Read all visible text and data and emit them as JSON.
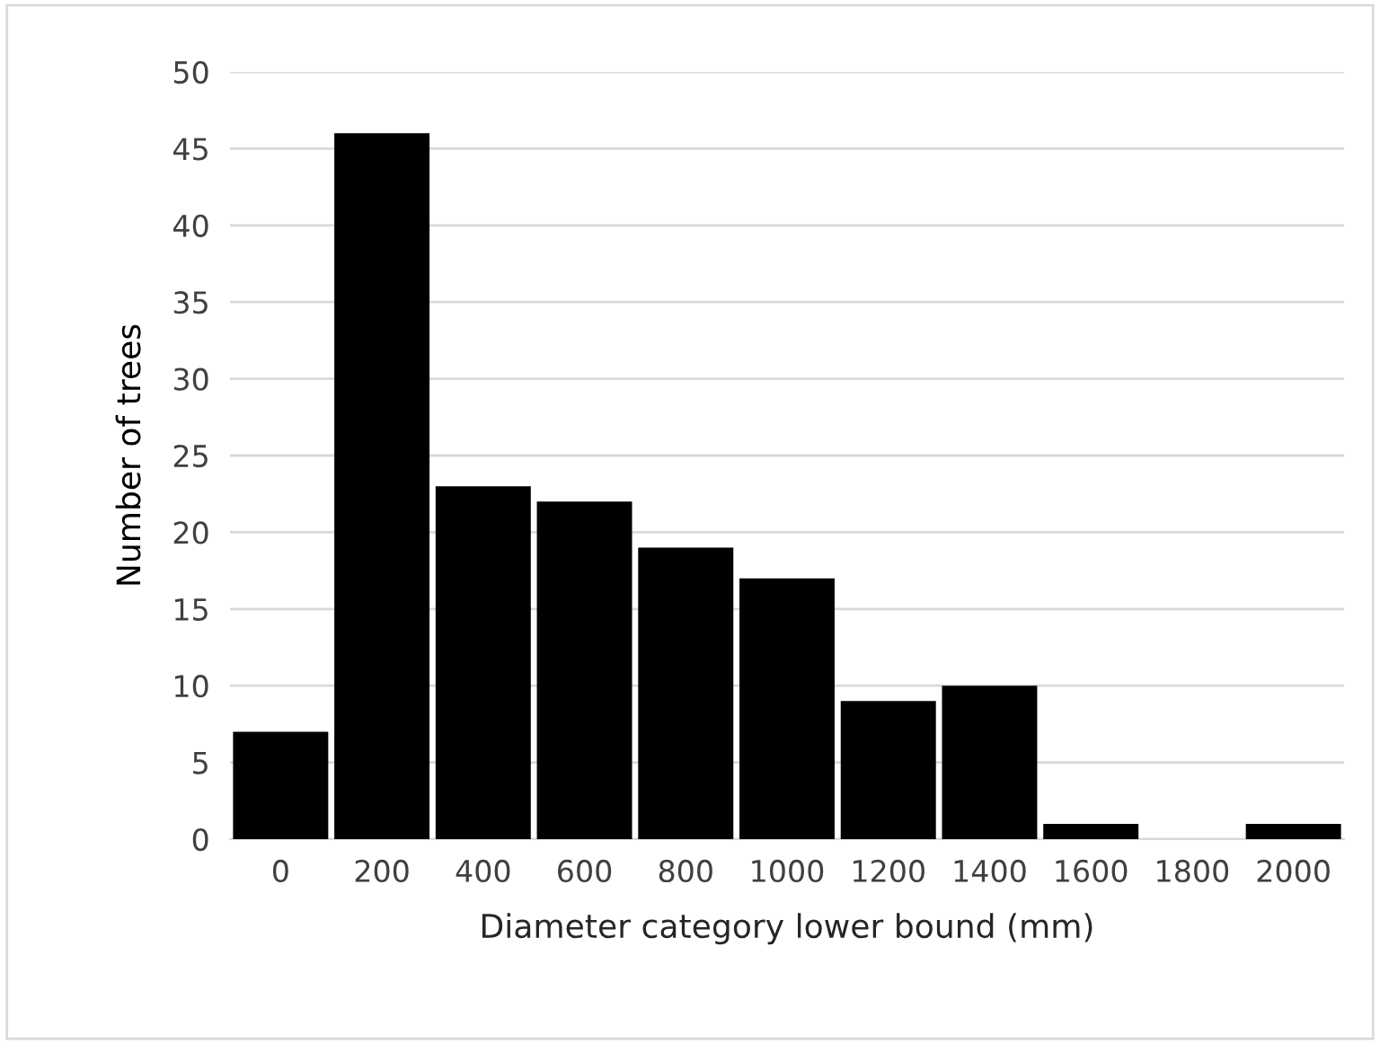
{
  "chart_data": {
    "type": "bar",
    "xlabel": "Diameter category lower bound (mm)",
    "ylabel": "Number of trees",
    "categories": [
      "0",
      "200",
      "400",
      "600",
      "800",
      "1000",
      "1200",
      "1400",
      "1600",
      "1800",
      "2000"
    ],
    "values": [
      7,
      46,
      23,
      22,
      19,
      17,
      9,
      10,
      1,
      0,
      1
    ],
    "color": "#000000",
    "ylim": [
      0,
      50
    ],
    "yticks": [
      0,
      5,
      10,
      15,
      20,
      25,
      30,
      35,
      40,
      45,
      50
    ],
    "grid": "y",
    "legend": false
  }
}
